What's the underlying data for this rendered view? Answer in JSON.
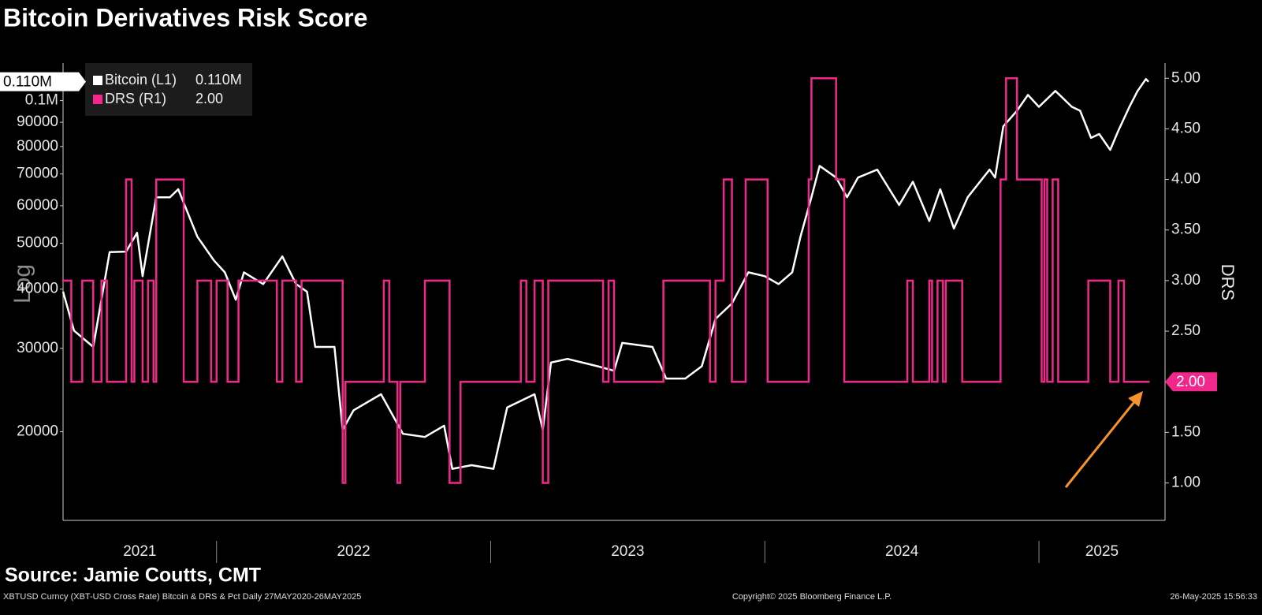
{
  "chart_data": {
    "type": "line",
    "title": "Bitcoin Derivatives Risk Score",
    "y_label": "Log",
    "y2_label": "DRS",
    "source": "Source: Jamie Coutts, CMT",
    "footer_left": "XBTUSD Curncy (XBT-USD Cross Rate) Bitcoin & DRS & Pct  Daily 27MAY2020-26MAY2025",
    "footer_center": "Copyright© 2025 Bloomberg Finance L.P.",
    "footer_right": "26-May-2025 15:56:33",
    "xlim": [
      2021.44,
      2025.46
    ],
    "xticks": [
      2022,
      2023,
      2024,
      2025
    ],
    "year_labels": [
      2021,
      2022,
      2023,
      2024,
      2025
    ],
    "log_y": true,
    "ylim": [
      13000,
      120000
    ],
    "yticks": [
      20000,
      30000,
      40000,
      50000,
      60000,
      70000,
      80000,
      90000,
      {
        "value": 100000,
        "label": "0.1M"
      }
    ],
    "y2lim": [
      0.63,
      5.15
    ],
    "y2ticks": [
      {
        "value": 1,
        "label": "1.00"
      },
      {
        "value": 1.5,
        "label": "1.50"
      },
      {
        "value": 2,
        "label": "2.00"
      },
      {
        "value": 2.5,
        "label": "2.50"
      },
      {
        "value": 3,
        "label": "3.00"
      },
      {
        "value": 3.5,
        "label": "3.50"
      },
      {
        "value": 4,
        "label": "4.00"
      },
      {
        "value": 4.5,
        "label": "4.50"
      },
      {
        "value": 5,
        "label": "5.00"
      }
    ],
    "series": [
      {
        "name": "Bitcoin (L1)",
        "color": "#ffffff",
        "value_label": "0.110M",
        "x": [
          2021.44,
          2021.48,
          2021.55,
          2021.61,
          2021.67,
          2021.71,
          2021.73,
          2021.78,
          2021.83,
          2021.86,
          2021.93,
          2021.99,
          2022.03,
          2022.07,
          2022.1,
          2022.17,
          2022.24,
          2022.29,
          2022.33,
          2022.36,
          2022.43,
          2022.46,
          2022.5,
          2022.6,
          2022.68,
          2022.76,
          2022.83,
          2022.86,
          2022.93,
          2023.01,
          2023.06,
          2023.16,
          2023.19,
          2023.22,
          2023.28,
          2023.39,
          2023.45,
          2023.48,
          2023.59,
          2023.64,
          2023.71,
          2023.77,
          2023.82,
          2023.88,
          2023.94,
          2024.0,
          2024.05,
          2024.1,
          2024.13,
          2024.17,
          2024.2,
          2024.26,
          2024.3,
          2024.34,
          2024.41,
          2024.49,
          2024.54,
          2024.6,
          2024.64,
          2024.69,
          2024.74,
          2024.82,
          2024.84,
          2024.87,
          2024.92,
          2024.96,
          2025.0,
          2025.06,
          2025.12,
          2025.15,
          2025.19,
          2025.22,
          2025.26,
          2025.29,
          2025.33,
          2025.36,
          2025.39,
          2025.4
        ],
        "values": [
          39500,
          32700,
          30200,
          47900,
          48000,
          52600,
          42600,
          62500,
          62500,
          65000,
          51600,
          46000,
          43400,
          38000,
          43400,
          41000,
          46900,
          41000,
          39500,
          30200,
          30200,
          20200,
          22200,
          24000,
          19800,
          19500,
          20600,
          16700,
          17000,
          16700,
          22500,
          24000,
          20200,
          28000,
          28500,
          27500,
          26900,
          30800,
          30200,
          25900,
          25900,
          27500,
          34600,
          37300,
          43400,
          42600,
          41000,
          43400,
          51600,
          62500,
          72800,
          68800,
          62500,
          68800,
          71500,
          60200,
          67400,
          55700,
          65000,
          53700,
          62500,
          71500,
          68800,
          88200,
          95200,
          102800,
          97000,
          104800,
          97000,
          95200,
          83400,
          85000,
          78700,
          86500,
          97000,
          104800,
          111000,
          109600
        ]
      },
      {
        "name": "DRS (R1)",
        "color": "#f0288c",
        "axis": "y2",
        "step": true,
        "value_label": "2.00",
        "x": [
          2021.44,
          2021.47,
          2021.51,
          2021.55,
          2021.58,
          2021.6,
          2021.67,
          2021.69,
          2021.7,
          2021.73,
          2021.75,
          2021.77,
          2021.78,
          2021.88,
          2021.93,
          2021.98,
          2022.0,
          2022.04,
          2022.08,
          2022.22,
          2022.24,
          2022.29,
          2022.31,
          2022.46,
          2022.47,
          2022.61,
          2022.63,
          2022.66,
          2022.67,
          2022.76,
          2022.85,
          2022.89,
          2023.11,
          2023.13,
          2023.16,
          2023.19,
          2023.21,
          2023.41,
          2023.43,
          2023.45,
          2023.63,
          2023.8,
          2023.82,
          2023.85,
          2023.88,
          2023.93,
          2024.01,
          2024.16,
          2024.17,
          2024.26,
          2024.29,
          2024.52,
          2024.54,
          2024.6,
          2024.61,
          2024.63,
          2024.65,
          2024.66,
          2024.72,
          2024.86,
          2024.88,
          2024.92,
          2025.01,
          2025.02,
          2025.03,
          2025.05,
          2025.07,
          2025.18,
          2025.26,
          2025.29,
          2025.31,
          2025.4
        ],
        "values": [
          3,
          2,
          3,
          2,
          3,
          2,
          4,
          2,
          3,
          2,
          3,
          2,
          4,
          2,
          3,
          2,
          3,
          2,
          3,
          2,
          3,
          2,
          3,
          1,
          2,
          3,
          2,
          1,
          2,
          3,
          1,
          2,
          3,
          2,
          3,
          1,
          3,
          2,
          3,
          2,
          3,
          2,
          3,
          4,
          2,
          4,
          2,
          4,
          5,
          4,
          2,
          3,
          2,
          3,
          2,
          3,
          2,
          3,
          2,
          4,
          5,
          4,
          2,
          4,
          2,
          4,
          2,
          3,
          2,
          3,
          2,
          2
        ]
      }
    ]
  }
}
